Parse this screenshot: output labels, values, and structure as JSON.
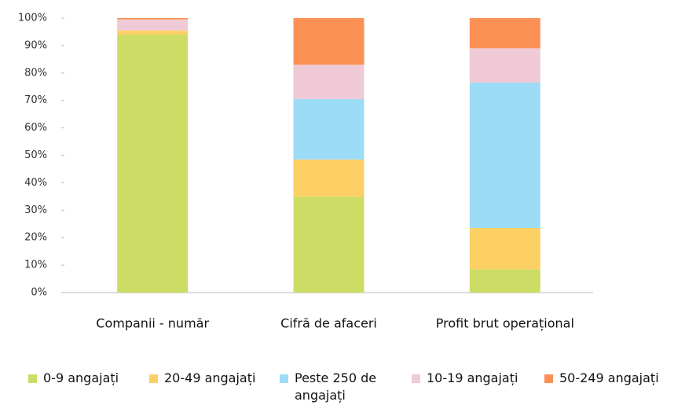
{
  "chart_data": {
    "type": "stacked_bar",
    "categories": [
      "Companii - număr",
      "Cifră de afaceri",
      "Profit brut operațional"
    ],
    "series": [
      {
        "name": "0-9 angajați",
        "color": "#cddc64",
        "values": [
          94,
          35,
          8.5
        ]
      },
      {
        "name": "20-49 angajați",
        "color": "#fdd065",
        "values": [
          1.5,
          13.5,
          15
        ]
      },
      {
        "name": "Peste 250 de angajați",
        "color": "#9cdcf6",
        "values": [
          0,
          22,
          53
        ]
      },
      {
        "name": "10-19 angajați",
        "color": "#efcad6",
        "values": [
          4,
          12.5,
          12.5
        ]
      },
      {
        "name": "50-249 angajați",
        "color": "#fb9154",
        "values": [
          0.5,
          17,
          11
        ]
      }
    ],
    "ylim": [
      0,
      100
    ],
    "yticks": [
      {
        "value": 0,
        "label": "0%"
      },
      {
        "value": 10,
        "label": "10%"
      },
      {
        "value": 20,
        "label": "20%"
      },
      {
        "value": 30,
        "label": "30%"
      },
      {
        "value": 40,
        "label": "40%"
      },
      {
        "value": 50,
        "label": "50%"
      },
      {
        "value": 60,
        "label": "60%"
      },
      {
        "value": 70,
        "label": "70%"
      },
      {
        "value": 80,
        "label": "80%"
      },
      {
        "value": 90,
        "label": "90%"
      },
      {
        "value": 100,
        "label": "100%"
      }
    ],
    "grid": false
  }
}
